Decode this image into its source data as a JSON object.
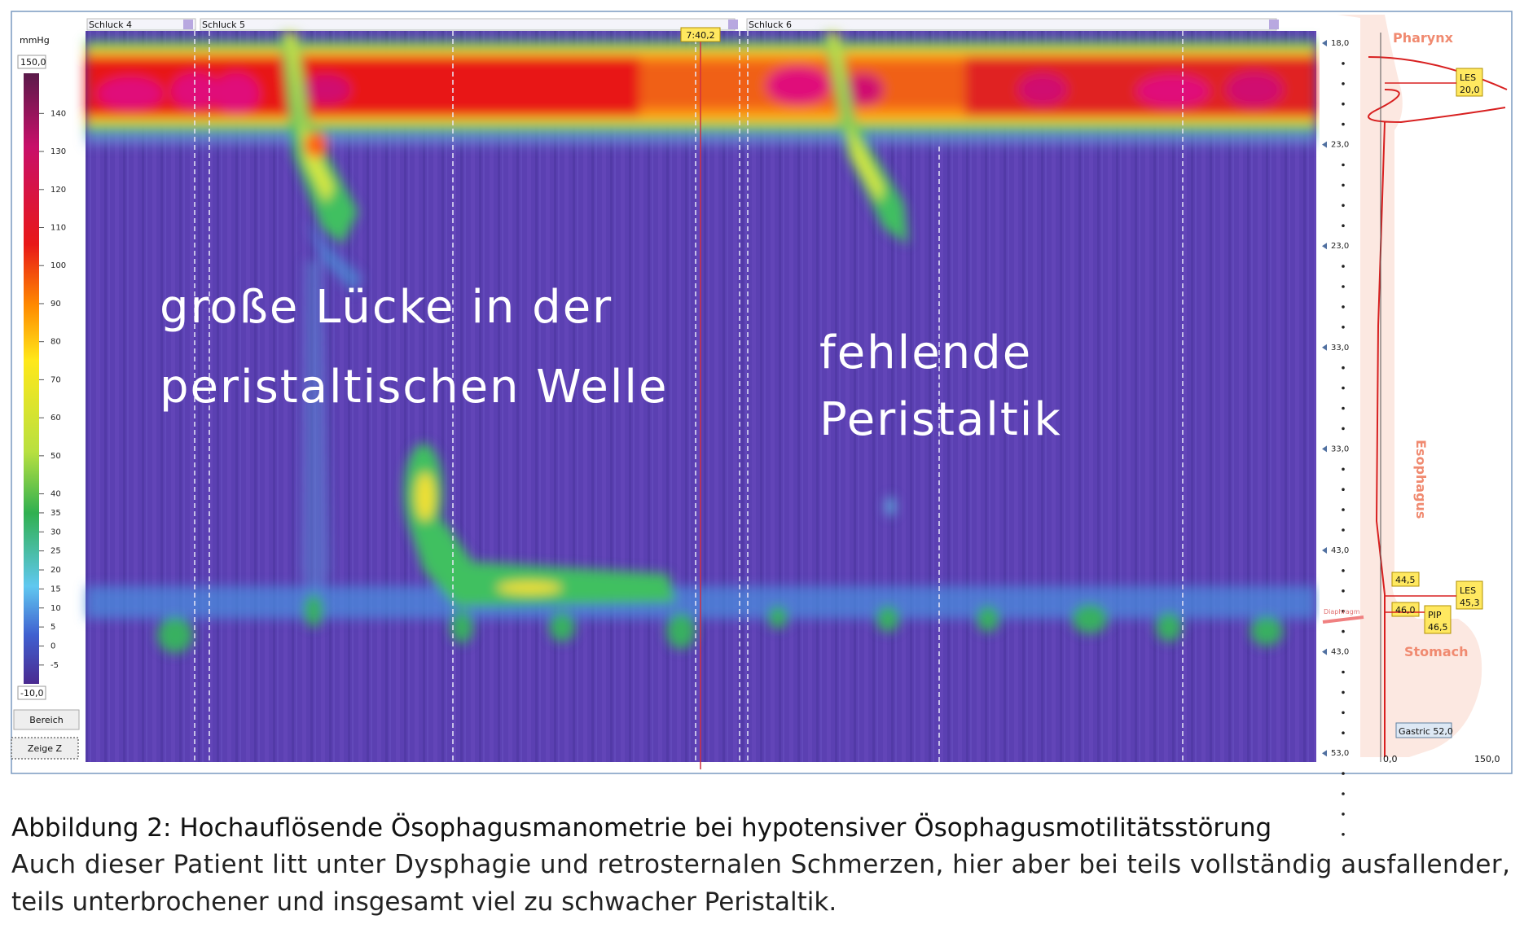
{
  "screen": {
    "scale_panel": {
      "unit": "mmHg",
      "max": "150,0",
      "min": "-10,0",
      "labels": [
        140,
        130,
        120,
        110,
        100,
        90,
        80,
        70,
        60,
        50,
        40,
        35,
        30,
        25,
        20,
        15,
        10,
        5,
        0,
        -5
      ],
      "buttons": [
        "Bereich",
        "Zeige Z"
      ]
    },
    "swallows": [
      "Schluck 4",
      "Schluck 5",
      "Schluck 6"
    ],
    "time_marker": "7:40,2",
    "annotations": [
      "große Lücke in der",
      "peristaltischen Welle",
      "fehlende",
      "Peristaltik"
    ],
    "sensor_panel": {
      "positions": [
        "18,0",
        "23,0",
        "23,0",
        "33,0",
        "33,0",
        "43,0",
        "43,0",
        "53,0"
      ],
      "regions": {
        "pharynx": "Pharynx",
        "esophagus": "Esophagus",
        "stomach": "Stomach",
        "diaphragm": "Diaphragm"
      },
      "markers": {
        "les_upper": [
          "LES",
          "20,0"
        ],
        "les_lower": [
          "LES",
          "45,3"
        ],
        "pip": [
          "PIP",
          "46,5"
        ],
        "m1": "44,5",
        "m2": "46,0",
        "gastric": "Gastric 52,0"
      },
      "axis": [
        "0,0",
        "150,0"
      ]
    }
  },
  "caption": {
    "title": "Abbildung 2: Hochauflösende Ösophagusmanometrie bei hypotensiver Ösophagusmotilitätsstörung",
    "text": [
      "Auch dieser Patient litt unter Dysphagie und retrosternalen Schmerzen, hier aber bei teils vollständig ausfallender,",
      "teils unterbrochener und insgesamt viel zu schwacher Peristaltik."
    ]
  }
}
